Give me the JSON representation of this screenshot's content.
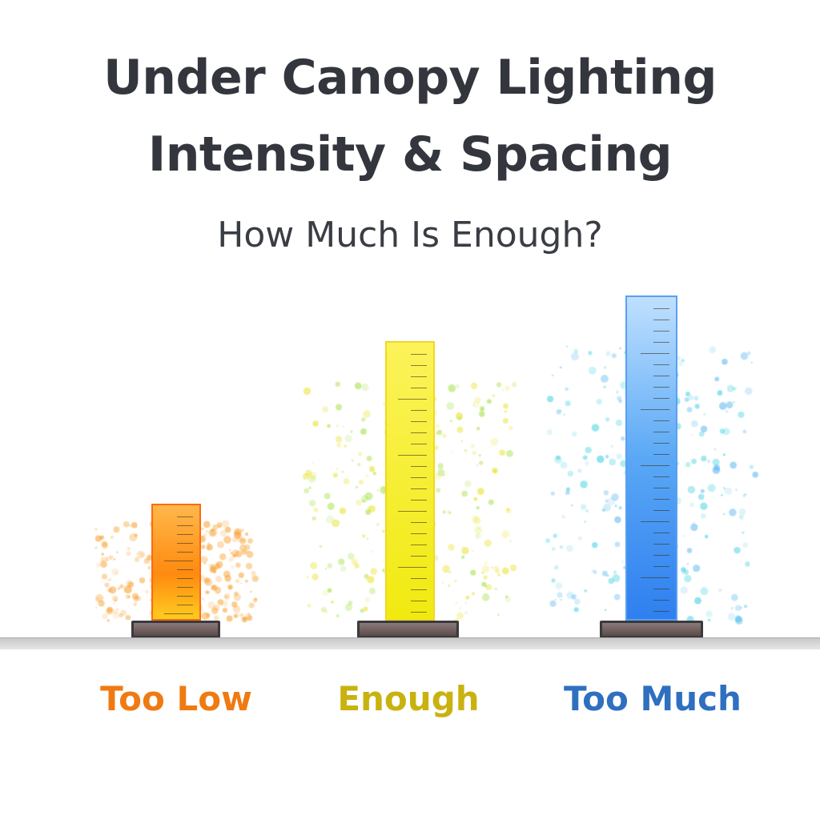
{
  "title_lines": [
    "Under Canopy Lighting",
    "Intensity & Spacing"
  ],
  "subtitle": "How Much Is Enough?",
  "levels": [
    {
      "label": "Too Low",
      "relative_height": 0.36,
      "color": "#f5870f",
      "label_color": "#f07a12"
    },
    {
      "label": "Enough",
      "relative_height": 0.86,
      "color": "#f4ec1a",
      "label_color": "#c9b20f"
    },
    {
      "label": "Too Much",
      "relative_height": 1.0,
      "color": "#4a9af0",
      "label_color": "#2f6fc0"
    }
  ]
}
